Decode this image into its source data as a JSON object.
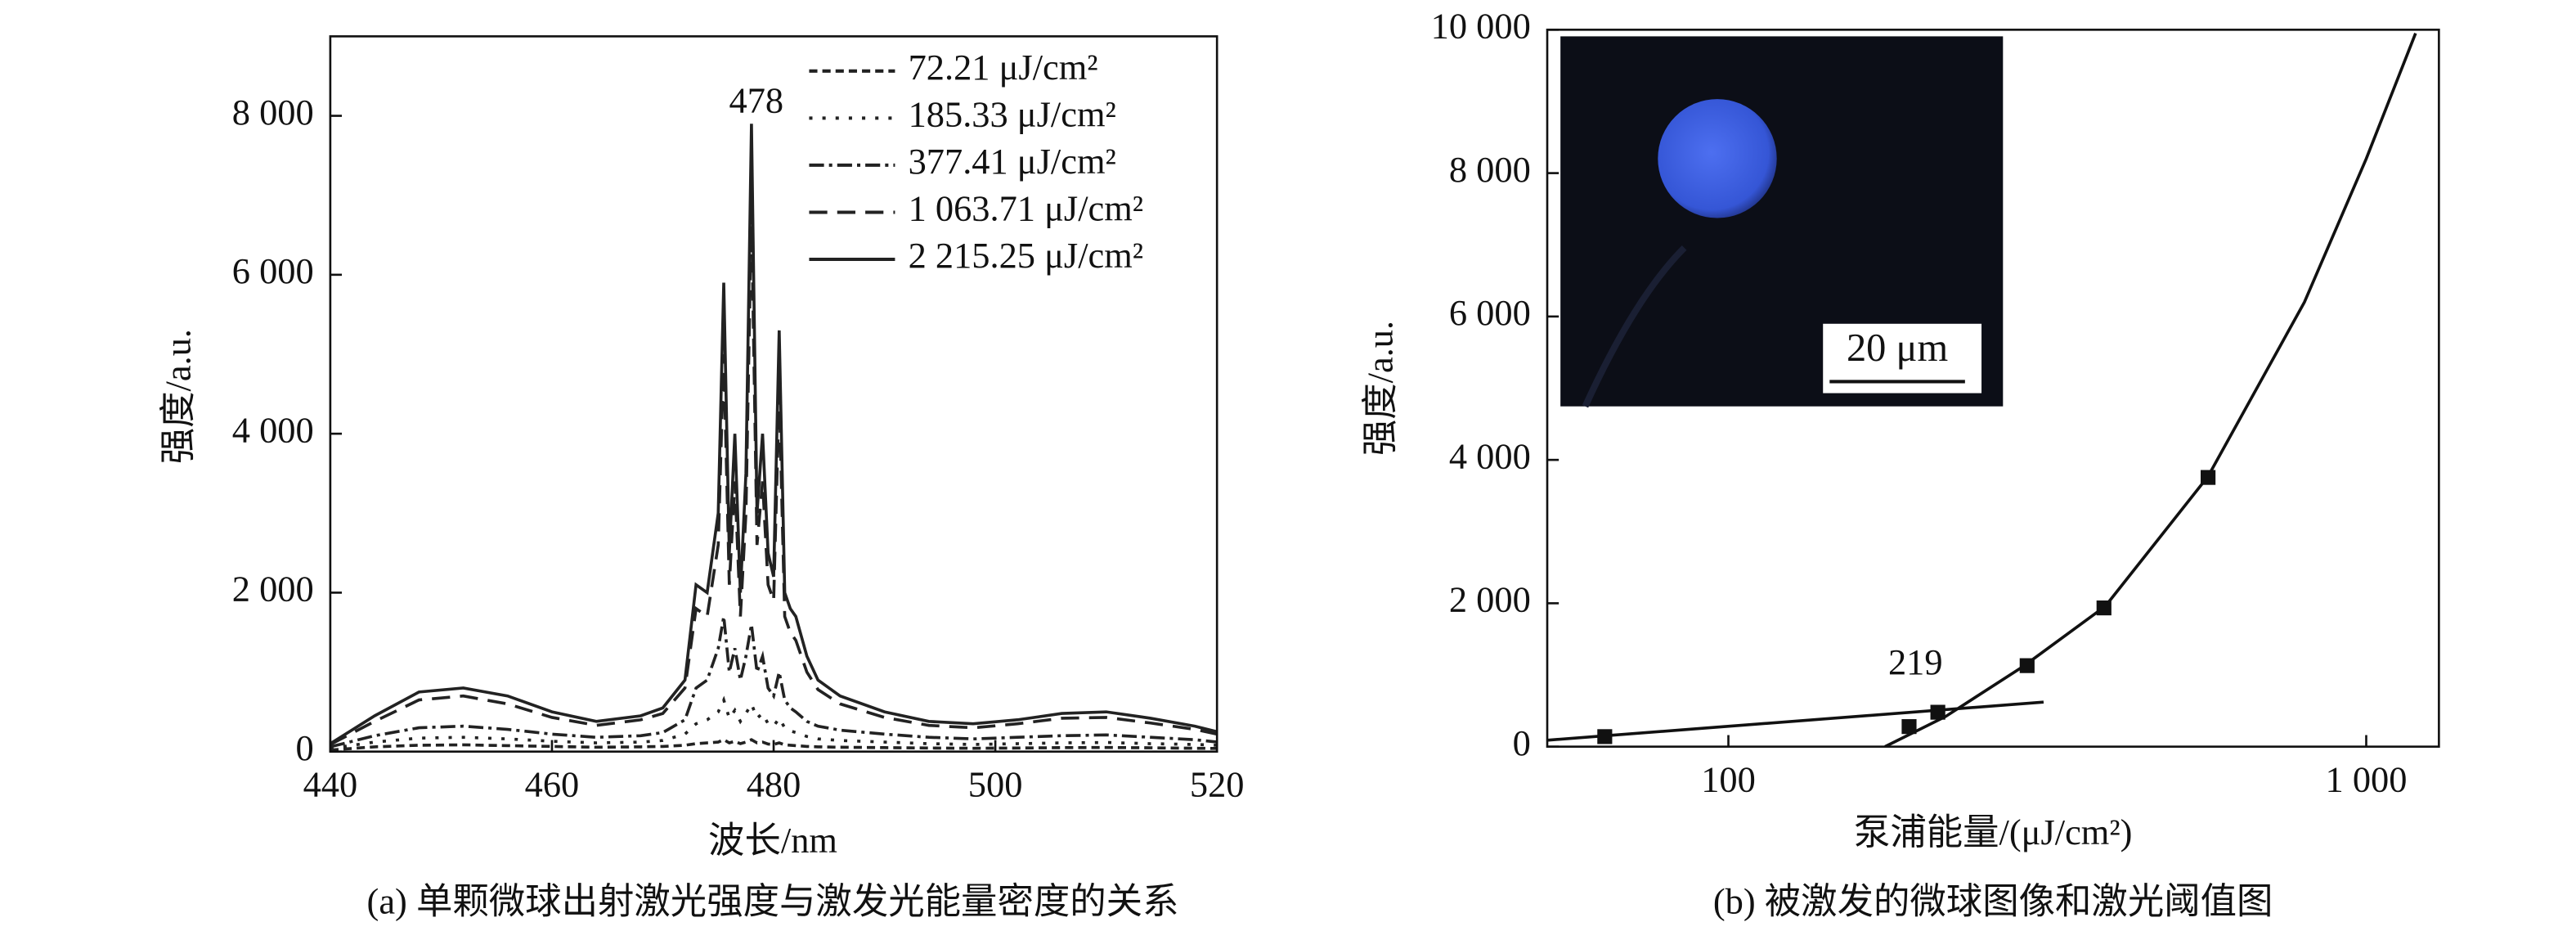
{
  "chart_data": [
    {
      "type": "line",
      "ylabel": "强度/a.u.",
      "xlabel": "波长/nm",
      "caption": "(a) 单颗微球出射激光强度与激发光能量密度的关系",
      "annotation": "478",
      "legend": "upper right",
      "xlim": [
        440,
        520
      ],
      "xticks": [
        440,
        460,
        480,
        500,
        520
      ],
      "ylim": [
        0,
        9000
      ],
      "yticks": [
        0,
        {
          "value": 2000,
          "label": "2 000"
        },
        {
          "value": 4000,
          "label": "4 000"
        },
        {
          "value": 6000,
          "label": "6 000"
        },
        {
          "value": 8000,
          "label": "8 000"
        }
      ],
      "x": [
        440,
        444,
        448,
        452,
        456,
        460,
        464,
        468,
        470,
        472,
        473,
        474,
        475,
        475.5,
        476,
        476.5,
        477,
        477.5,
        478,
        478.5,
        479,
        479.5,
        480,
        480.5,
        481,
        481.5,
        482,
        483,
        484,
        486,
        490,
        494,
        498,
        502,
        506,
        510,
        514,
        518,
        520
      ],
      "series": [
        {
          "name": "72.21 μJ/cm²",
          "color": "#222",
          "style": "short-dash",
          "values": [
            20,
            60,
            80,
            85,
            75,
            65,
            55,
            60,
            65,
            80,
            100,
            110,
            120,
            150,
            110,
            130,
            100,
            120,
            150,
            110,
            120,
            95,
            90,
            110,
            85,
            80,
            75,
            65,
            60,
            55,
            50,
            45,
            42,
            45,
            50,
            52,
            48,
            42,
            40
          ]
        },
        {
          "name": "185.33 μJ/cm²",
          "color": "#222",
          "style": "dotted",
          "values": [
            40,
            120,
            170,
            180,
            160,
            130,
            110,
            120,
            140,
            220,
            350,
            400,
            500,
            650,
            420,
            520,
            380,
            480,
            600,
            420,
            480,
            350,
            320,
            420,
            300,
            260,
            240,
            190,
            160,
            140,
            120,
            100,
            90,
            100,
            110,
            115,
            100,
            90,
            80
          ]
        },
        {
          "name": "377.41 μJ/cm²",
          "color": "#222",
          "style": "dash-dot",
          "values": [
            60,
            200,
            300,
            320,
            280,
            220,
            180,
            200,
            240,
            400,
            800,
            900,
            1300,
            1700,
            1000,
            1300,
            900,
            1200,
            1600,
            1000,
            1200,
            800,
            700,
            1000,
            650,
            550,
            500,
            380,
            320,
            270,
            220,
            180,
            160,
            180,
            200,
            210,
            180,
            150,
            120
          ]
        },
        {
          "name": "1 063.71 μJ/cm²",
          "color": "#222",
          "style": "dashed",
          "values": [
            90,
            380,
            650,
            700,
            600,
            430,
            330,
            400,
            480,
            800,
            1800,
            1700,
            2600,
            5000,
            2100,
            3400,
            1700,
            3000,
            6800,
            2600,
            3400,
            2100,
            1900,
            4500,
            1700,
            1500,
            1400,
            1000,
            780,
            600,
            430,
            330,
            300,
            350,
            420,
            430,
            360,
            280,
            220
          ]
        },
        {
          "name": "2 215.25 μJ/cm²",
          "color": "#222",
          "style": "solid",
          "values": [
            100,
            450,
            750,
            800,
            700,
            500,
            380,
            450,
            550,
            900,
            2100,
            2000,
            3000,
            5900,
            2500,
            4000,
            2000,
            3500,
            7900,
            3000,
            4000,
            2500,
            2200,
            5300,
            2000,
            1800,
            1700,
            1200,
            900,
            700,
            500,
            380,
            350,
            400,
            480,
            500,
            420,
            320,
            250
          ]
        }
      ]
    },
    {
      "type": "scatter",
      "ylabel": "强度/a.u.",
      "xlabel": "泵浦能量/(μJ/cm²)",
      "caption": "(b) 被激发的微球图像和激光阈值图",
      "annotation": "219",
      "inset_label": "20 μm",
      "xscale": "log",
      "xlim": [
        52,
        1300
      ],
      "xticks": [
        100,
        {
          "value": 1000,
          "label": "1 000"
        }
      ],
      "ylim": [
        0,
        10000
      ],
      "yticks": [
        0,
        {
          "value": 2000,
          "label": "2 000"
        },
        {
          "value": 4000,
          "label": "4 000"
        },
        {
          "value": 6000,
          "label": "6 000"
        },
        {
          "value": 8000,
          "label": "8 000"
        },
        {
          "value": 10000,
          "label": "10 000"
        }
      ],
      "series": [
        {
          "mode": "markers",
          "color": "#111",
          "x": [
            64,
            192,
            213,
            294,
            388,
            565
          ],
          "values": [
            140,
            280,
            480,
            1130,
            1935,
            3755
          ]
        },
        {
          "mode": "lines",
          "color": "#111",
          "x": [
            52,
            312
          ],
          "values": [
            90,
            622
          ]
        },
        {
          "mode": "lines",
          "color": "#111",
          "x": [
            176,
            219,
            290,
            390,
            565,
            800,
            1000,
            1195
          ],
          "values": [
            0,
            420,
            1120,
            1960,
            3770,
            6200,
            8200,
            9950
          ]
        }
      ]
    }
  ]
}
